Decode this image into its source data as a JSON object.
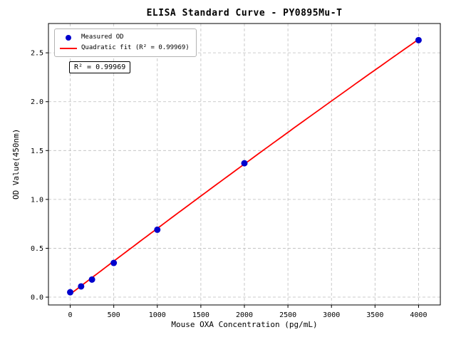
{
  "chart_data": {
    "type": "scatter",
    "title": "ELISA Standard Curve - PY0895Mu-T",
    "xlabel": "Mouse OXA Concentration (pg/mL)",
    "ylabel": "OD Value(450nm)",
    "xlim": [
      -250,
      4250
    ],
    "ylim": [
      -0.08,
      2.8
    ],
    "x_ticks": [
      0,
      500,
      1000,
      1500,
      2000,
      2500,
      3000,
      3500,
      4000
    ],
    "y_ticks": [
      0,
      0.5,
      1,
      1.5,
      2,
      2.5
    ],
    "grid": true,
    "grid_style": "dashed",
    "grid_color": "#bdbdbd",
    "legend_position": "upper-left",
    "series": [
      {
        "name": "Measured OD",
        "type": "scatter",
        "color": "#0000cd",
        "x": [
          0,
          125,
          250,
          500,
          1000,
          2000,
          4000
        ],
        "y": [
          0.05,
          0.11,
          0.18,
          0.35,
          0.69,
          1.37,
          2.63
        ]
      },
      {
        "name": "Quadratic fit (R² = 0.99969)",
        "type": "line",
        "color": "#ff0000",
        "fit_coefficients": {
          "a": 0.03,
          "b": 0.00068,
          "c": -7e-09
        },
        "x_range": [
          0,
          4000
        ]
      }
    ],
    "annotation": "R² = 0.99969",
    "r_squared": 0.99969
  }
}
